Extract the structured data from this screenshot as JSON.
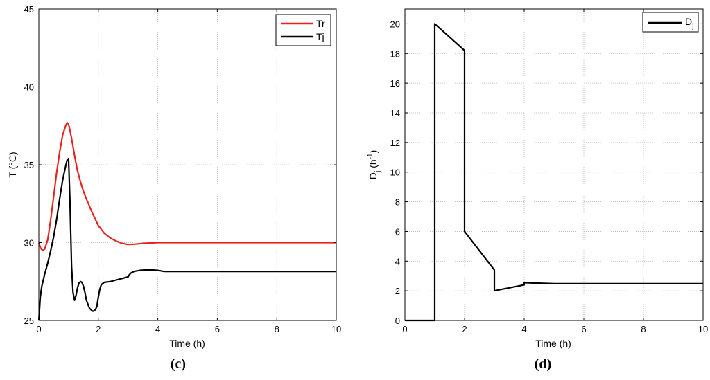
{
  "chart_data": [
    {
      "type": "line",
      "panel": "(c)",
      "xlabel": "Time (h)",
      "ylabel": "T (°C)",
      "xlim": [
        0,
        10
      ],
      "ylim": [
        25,
        45
      ],
      "xticks": [
        0,
        2,
        4,
        6,
        8,
        10
      ],
      "yticks": [
        25,
        30,
        35,
        40,
        45
      ],
      "grid": true,
      "legend_position": "top-right",
      "series": [
        {
          "name": "Tr",
          "color": "#e8231d",
          "x": [
            0,
            0.05,
            0.1,
            0.15,
            0.2,
            0.3,
            0.4,
            0.5,
            0.6,
            0.7,
            0.8,
            0.9,
            0.95,
            1.0,
            1.05,
            1.1,
            1.2,
            1.3,
            1.4,
            1.5,
            1.6,
            1.8,
            2.0,
            2.2,
            2.4,
            2.6,
            2.8,
            3.0,
            3.2,
            3.5,
            4.0,
            4.5,
            5.0,
            6.0,
            7.0,
            8.0,
            9.0,
            10.0
          ],
          "y": [
            30.0,
            29.7,
            29.55,
            29.5,
            29.6,
            30.2,
            31.5,
            33.0,
            34.5,
            35.8,
            36.9,
            37.5,
            37.7,
            37.6,
            37.2,
            36.7,
            35.6,
            34.6,
            33.9,
            33.3,
            32.8,
            31.9,
            31.1,
            30.6,
            30.3,
            30.1,
            29.95,
            29.88,
            29.9,
            29.95,
            30.0,
            30.0,
            30.0,
            30.0,
            30.0,
            30.0,
            30.0,
            30.0
          ]
        },
        {
          "name": "Tj",
          "color": "#000000",
          "x": [
            0,
            0.05,
            0.1,
            0.2,
            0.3,
            0.4,
            0.5,
            0.6,
            0.7,
            0.8,
            0.9,
            0.95,
            1.0,
            1.05,
            1.1,
            1.15,
            1.2,
            1.25,
            1.3,
            1.35,
            1.4,
            1.45,
            1.5,
            1.55,
            1.6,
            1.7,
            1.8,
            1.85,
            1.9,
            1.95,
            2.0,
            2.05,
            2.1,
            2.2,
            2.4,
            2.6,
            2.8,
            3.0,
            3.05,
            3.1,
            3.2,
            3.4,
            3.6,
            3.8,
            4.0,
            4.2,
            4.5,
            5.0,
            6.0,
            8.0,
            10.0
          ],
          "y": [
            25.0,
            26.5,
            27.2,
            28.0,
            28.7,
            29.5,
            30.4,
            31.5,
            32.8,
            34.0,
            34.9,
            35.3,
            35.4,
            32.5,
            28.5,
            26.8,
            26.3,
            26.6,
            27.1,
            27.4,
            27.5,
            27.45,
            27.2,
            26.8,
            26.3,
            25.8,
            25.6,
            25.6,
            25.7,
            25.9,
            26.5,
            27.0,
            27.3,
            27.45,
            27.5,
            27.6,
            27.7,
            27.8,
            27.95,
            28.05,
            28.15,
            28.22,
            28.25,
            28.25,
            28.22,
            28.15,
            28.15,
            28.15,
            28.15,
            28.15,
            28.15
          ]
        }
      ]
    },
    {
      "type": "line",
      "panel": "(d)",
      "xlabel": "Time (h)",
      "ylabel": "D_j (h^-1)",
      "xlim": [
        0,
        10
      ],
      "ylim": [
        0,
        21
      ],
      "xticks": [
        0,
        2,
        4,
        6,
        8,
        10
      ],
      "yticks": [
        0,
        2,
        4,
        6,
        8,
        10,
        12,
        14,
        16,
        18,
        20
      ],
      "grid": true,
      "legend_position": "top-right",
      "series": [
        {
          "name": "Dj",
          "color": "#000000",
          "x": [
            0,
            1.0,
            1.0,
            2.0,
            2.0,
            3.0,
            3.0,
            4.0,
            4.0,
            5.0,
            6.0,
            8.0,
            10.0
          ],
          "y": [
            0,
            0,
            20.0,
            18.2,
            6.0,
            3.4,
            2.0,
            2.4,
            2.55,
            2.48,
            2.48,
            2.48,
            2.48
          ]
        }
      ]
    }
  ],
  "panels": {
    "c": {
      "ylabel": "T (°C)",
      "xlabel": "Time (h)",
      "caption": "(c)",
      "legend": [
        "Tr",
        "Tj"
      ]
    },
    "d": {
      "ylabel_main": "D",
      "ylabel_sub": "j",
      "ylabel_rest": " (h",
      "ylabel_sup": "-1",
      "ylabel_close": ")",
      "xlabel": "Time (h)",
      "caption": "(d)",
      "legend_main": "D",
      "legend_sub": "j"
    }
  }
}
